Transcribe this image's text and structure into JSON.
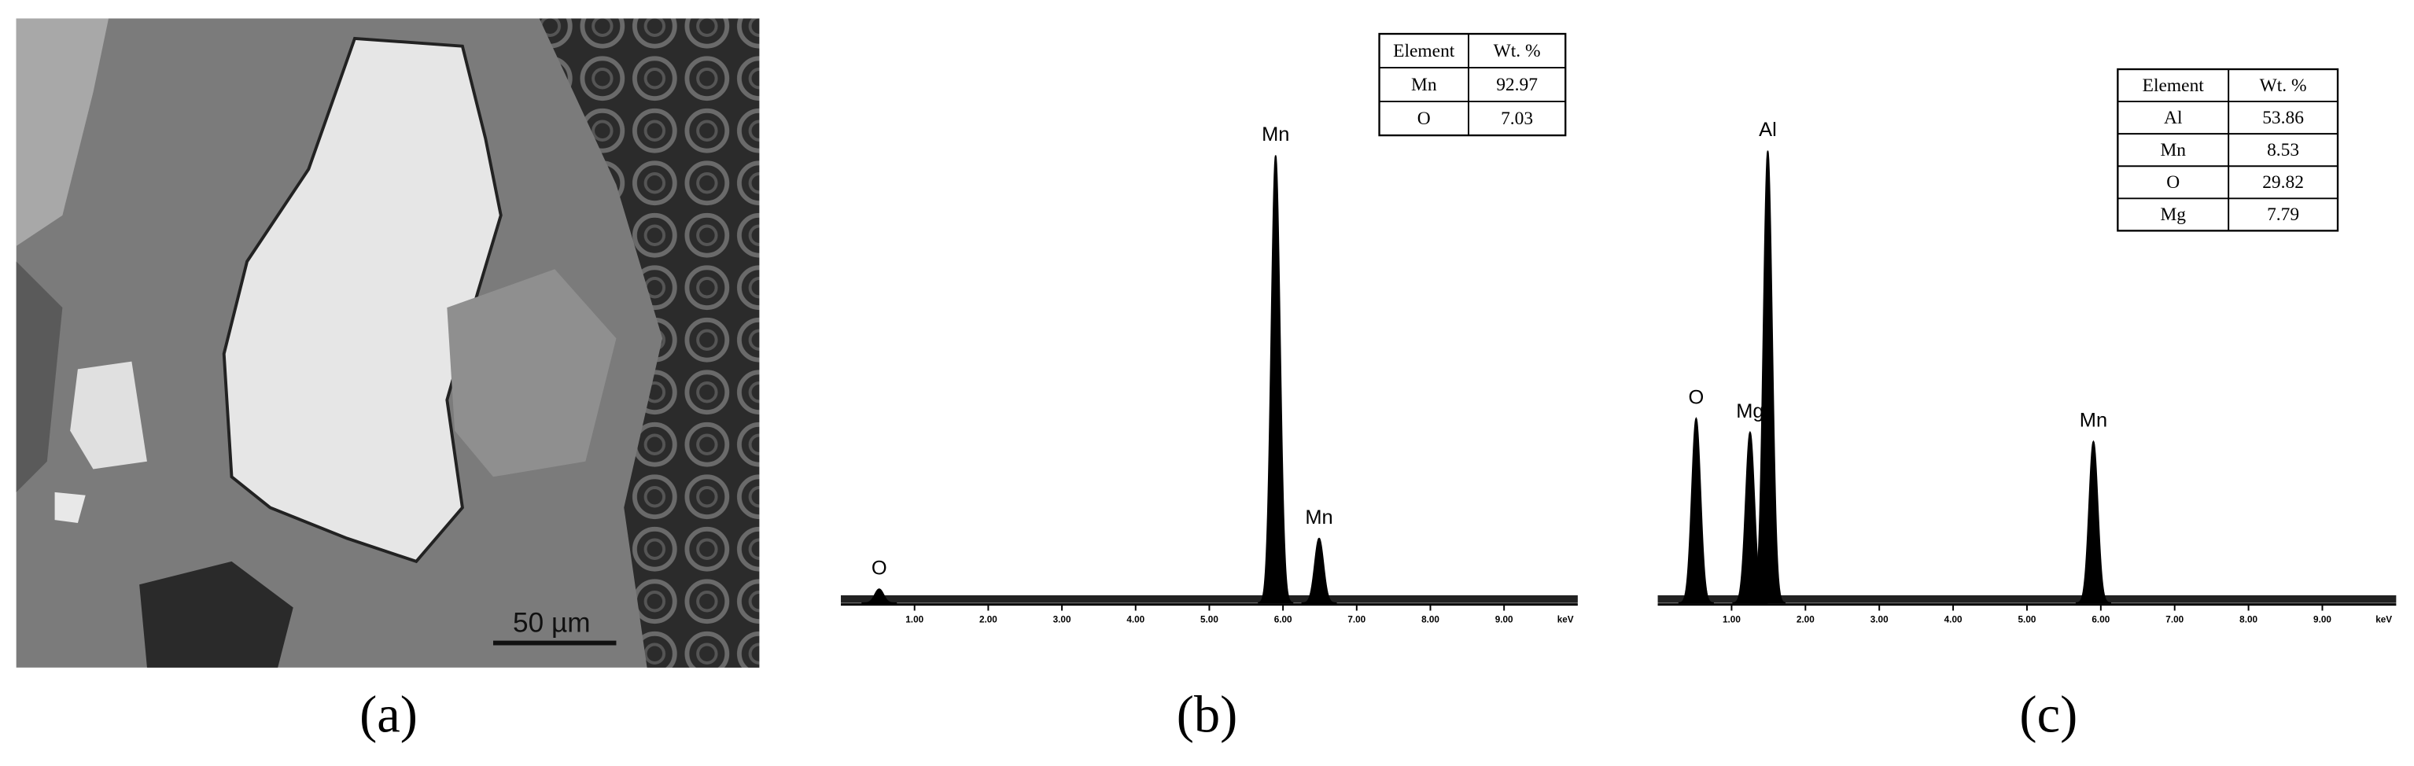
{
  "panels": [
    {
      "label": "(a)",
      "scale_bar": "50 µm"
    },
    {
      "label": "(b)",
      "spectrum": {
        "xlim": [
          0,
          10
        ],
        "ylim": [
          0,
          100
        ],
        "xticks": [
          {
            "value": 1,
            "label": "1.00"
          },
          {
            "value": 2,
            "label": "2.00"
          },
          {
            "value": 3,
            "label": "3.00"
          },
          {
            "value": 4,
            "label": "4.00"
          },
          {
            "value": 5,
            "label": "5.00"
          },
          {
            "value": 6,
            "label": "6.00"
          },
          {
            "value": 7,
            "label": "7.00"
          },
          {
            "value": 8,
            "label": "8.00"
          },
          {
            "value": 9,
            "label": "9.00"
          }
        ],
        "x_unit": "keV",
        "peaks": [
          {
            "label": "O",
            "energy": 0.52,
            "height": 3
          },
          {
            "label": "Mn",
            "energy": 5.9,
            "height": 97
          },
          {
            "label": "Mn",
            "energy": 6.49,
            "height": 14
          }
        ]
      },
      "table": {
        "header": [
          "Element",
          "Wt. %"
        ],
        "rows": [
          [
            "Mn",
            "92.97"
          ],
          [
            "O",
            "7.03"
          ]
        ]
      }
    },
    {
      "label": "(c)",
      "spectrum": {
        "xlim": [
          0,
          10
        ],
        "ylim": [
          0,
          100
        ],
        "xticks": [
          {
            "value": 1,
            "label": "1.00"
          },
          {
            "value": 2,
            "label": "2.00"
          },
          {
            "value": 3,
            "label": "3.00"
          },
          {
            "value": 4,
            "label": "4.00"
          },
          {
            "value": 5,
            "label": "5.00"
          },
          {
            "value": 6,
            "label": "6.00"
          },
          {
            "value": 7,
            "label": "7.00"
          },
          {
            "value": 8,
            "label": "8.00"
          },
          {
            "value": 9,
            "label": "9.00"
          }
        ],
        "x_unit": "keV",
        "peaks": [
          {
            "label": "O",
            "energy": 0.52,
            "height": 40
          },
          {
            "label": "Mg",
            "energy": 1.25,
            "height": 37
          },
          {
            "label": "Al",
            "energy": 1.49,
            "height": 98
          },
          {
            "label": "Mn",
            "energy": 5.9,
            "height": 35
          }
        ]
      },
      "table": {
        "header": [
          "Element",
          "Wt. %"
        ],
        "rows": [
          [
            "Al",
            "53.86"
          ],
          [
            "Mn",
            "8.53"
          ],
          [
            "O",
            "29.82"
          ],
          [
            "Mg",
            "7.79"
          ]
        ]
      }
    }
  ]
}
